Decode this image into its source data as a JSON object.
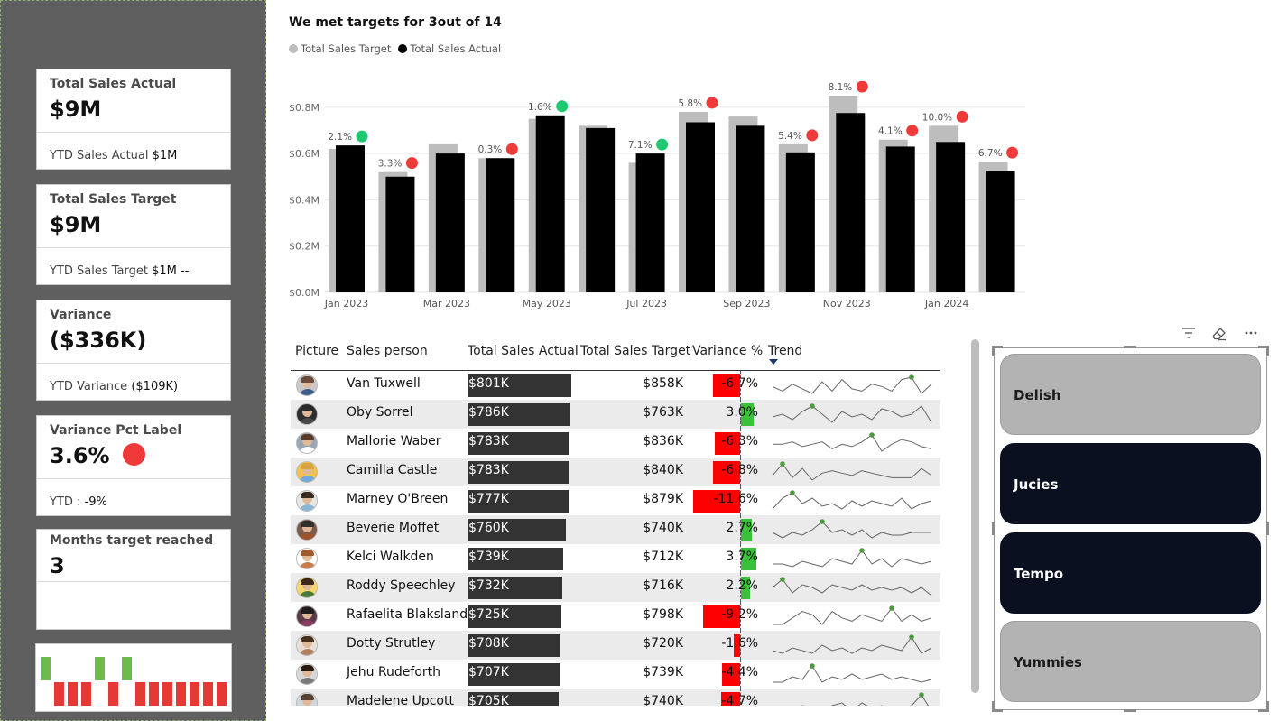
{
  "kpis": [
    {
      "label": "Total Sales Actual",
      "value": "$9M",
      "sub_label": "YTD Sales Actual",
      "sub_value": "$1M"
    },
    {
      "label": "Total Sales Target",
      "value": "$9M",
      "sub_label": "YTD Sales Target",
      "sub_value": "$1M --"
    },
    {
      "label": "Variance",
      "value": "($336K)",
      "sub_label": "YTD Variance",
      "sub_value": "($109K)"
    },
    {
      "label": "Variance Pct Label",
      "value": "3.6%",
      "sub_label": "YTD :",
      "sub_value": "-9%"
    },
    {
      "label": "Months target reached",
      "value": "3"
    }
  ],
  "kpi_status_color": "#f03a3a",
  "month_strip": {
    "met": [
      true,
      false,
      false,
      false,
      true,
      false,
      true,
      false,
      false,
      false,
      false,
      false,
      false,
      false
    ],
    "met_color": "#6dbb4d",
    "missed_color": "#e53935"
  },
  "chart": {
    "title": "We met targets for 3out of 14",
    "legend": [
      {
        "name": "Total Sales Target",
        "color": "#bdbdbd"
      },
      {
        "name": "Total Sales Actual",
        "color": "#000000"
      }
    ],
    "y_ticks": [
      "$0.0M",
      "$0.2M",
      "$0.4M",
      "$0.6M",
      "$0.8M"
    ],
    "x_ticks": [
      "Jan 2023",
      "Mar 2023",
      "May 2023",
      "Jul 2023",
      "Sep 2023",
      "Nov 2023",
      "Jan 2024"
    ],
    "status_colors": {
      "met": "#1ec870",
      "missed": "#f03a3a"
    }
  },
  "chart_data": {
    "type": "bar",
    "categories": [
      "Jan 2023",
      "Feb 2023",
      "Mar 2023",
      "Apr 2023",
      "May 2023",
      "Jun 2023",
      "Jul 2023",
      "Aug 2023",
      "Sep 2023",
      "Oct 2023",
      "Nov 2023",
      "Dec 2023",
      "Jan 2024",
      "Feb 2024"
    ],
    "series": [
      {
        "name": "Total Sales Target",
        "values": [
          0.62,
          0.52,
          0.64,
          0.58,
          0.75,
          0.72,
          0.56,
          0.78,
          0.76,
          0.64,
          0.85,
          0.66,
          0.72,
          0.565
        ]
      },
      {
        "name": "Total Sales Actual",
        "values": [
          0.635,
          0.5,
          0.6,
          0.58,
          0.765,
          0.71,
          0.6,
          0.735,
          0.72,
          0.605,
          0.775,
          0.63,
          0.65,
          0.525
        ]
      }
    ],
    "labels": [
      "2.1%",
      "3.3%",
      "",
      "0.3%",
      "1.6%",
      "",
      "7.1%",
      "5.8%",
      "",
      "5.4%",
      "8.1%",
      "4.1%",
      "10.0%",
      "6.7%"
    ],
    "status": [
      "met",
      "missed",
      "",
      "missed",
      "met",
      "",
      "met",
      "missed",
      "",
      "missed",
      "missed",
      "missed",
      "missed",
      "missed"
    ],
    "ylim": [
      0,
      0.85
    ]
  },
  "table": {
    "headers": [
      "Picture",
      "Sales person",
      "Total Sales Actual",
      "Total Sales Target",
      "Variance %",
      "Trend"
    ],
    "rows": [
      {
        "name": "Van Tuxwell",
        "actual": "$801K",
        "actual_value": 801,
        "target": "$858K",
        "variance": "-6.7%",
        "variance_value": -6.7,
        "trend": [
          5,
          3,
          6,
          4,
          2,
          7,
          3,
          8,
          4,
          3,
          6,
          5,
          3,
          8,
          9,
          2,
          6
        ]
      },
      {
        "name": "Oby Sorrel",
        "actual": "$786K",
        "actual_value": 786,
        "target": "$763K",
        "variance": "3.0%",
        "variance_value": 3.0,
        "trend": [
          4,
          5,
          3,
          6,
          8,
          5,
          2,
          6,
          4,
          5,
          3,
          7,
          6,
          4,
          5,
          8,
          2
        ]
      },
      {
        "name": "Mallorie Waber",
        "actual": "$783K",
        "actual_value": 783,
        "target": "$836K",
        "variance": "-6.3%",
        "variance_value": -6.3,
        "trend": [
          5,
          5,
          6,
          4,
          5,
          6,
          3,
          5,
          4,
          6,
          9,
          2,
          5,
          7,
          6,
          4,
          3
        ]
      },
      {
        "name": "Camilla Castle",
        "actual": "$783K",
        "actual_value": 783,
        "target": "$840K",
        "variance": "-6.8%",
        "variance_value": -6.8,
        "trend": [
          4,
          9,
          3,
          7,
          2,
          5,
          6,
          5,
          4,
          6,
          5,
          4,
          3,
          3,
          3,
          7,
          4
        ]
      },
      {
        "name": "Marney O'Breen",
        "actual": "$777K",
        "actual_value": 777,
        "target": "$879K",
        "variance": "-11.6%",
        "variance_value": -11.6,
        "trend": [
          3,
          7,
          9,
          5,
          7,
          4,
          5,
          3,
          6,
          4,
          6,
          5,
          4,
          7,
          3,
          5,
          6
        ]
      },
      {
        "name": "Beverie Moffet",
        "actual": "$760K",
        "actual_value": 760,
        "target": "$740K",
        "variance": "2.7%",
        "variance_value": 2.7,
        "trend": [
          5,
          3,
          5,
          4,
          6,
          9,
          5,
          6,
          4,
          6,
          3,
          5,
          4,
          4,
          5,
          5,
          5
        ]
      },
      {
        "name": "Kelci Walkden",
        "actual": "$739K",
        "actual_value": 739,
        "target": "$712K",
        "variance": "3.7%",
        "variance_value": 3.7,
        "trend": [
          4,
          4,
          3,
          5,
          4,
          3,
          6,
          5,
          4,
          9,
          4,
          6,
          3,
          6,
          5,
          4,
          5
        ]
      },
      {
        "name": "Roddy Speechley",
        "actual": "$732K",
        "actual_value": 732,
        "target": "$716K",
        "variance": "2.2%",
        "variance_value": 2.2,
        "trend": [
          5,
          8,
          3,
          6,
          5,
          3,
          6,
          5,
          4,
          6,
          4,
          5,
          4,
          5,
          3,
          5,
          2
        ]
      },
      {
        "name": "Rafaelita Blaksland",
        "actual": "$725K",
        "actual_value": 725,
        "target": "$798K",
        "variance": "-9.2%",
        "variance_value": -9.2,
        "trend": [
          3,
          3,
          5,
          7,
          6,
          3,
          7,
          5,
          4,
          6,
          5,
          4,
          8,
          4,
          6,
          4,
          5
        ]
      },
      {
        "name": "Dotty Strutley",
        "actual": "$708K",
        "actual_value": 708,
        "target": "$720K",
        "variance": "-1.6%",
        "variance_value": -1.6,
        "trend": [
          4,
          3,
          5,
          4,
          3,
          6,
          4,
          5,
          3,
          5,
          4,
          6,
          5,
          4,
          9,
          3,
          5
        ]
      },
      {
        "name": "Jehu Rudeforth",
        "actual": "$707K",
        "actual_value": 707,
        "target": "$739K",
        "variance": "-4.4%",
        "variance_value": -4.4,
        "trend": [
          3,
          3,
          5,
          4,
          9,
          3,
          5,
          4,
          6,
          4,
          5,
          6,
          4,
          5,
          4,
          3,
          4
        ]
      },
      {
        "name": "Madelene Upcott",
        "actual": "$705K",
        "actual_value": 705,
        "target": "$740K",
        "variance": "-4.7%",
        "variance_value": -4.7,
        "trend": [
          3,
          4,
          3,
          5,
          4,
          3,
          5,
          6,
          3,
          6,
          4,
          5,
          3,
          4,
          5,
          9,
          3
        ]
      }
    ],
    "colors": {
      "negative": "#ff0000",
      "positive": "#39c139",
      "trend_line": "#666666",
      "trend_peak": "#4e9a3e"
    }
  },
  "toolbar": {
    "filter_icon": "filter-icon",
    "eraser_icon": "eraser-icon",
    "more_icon": "more-options-icon"
  },
  "slicer": {
    "items": [
      {
        "label": "Delish",
        "selected": false
      },
      {
        "label": "Jucies",
        "selected": true
      },
      {
        "label": "Tempo",
        "selected": true
      },
      {
        "label": "Yummies",
        "selected": false
      }
    ]
  }
}
